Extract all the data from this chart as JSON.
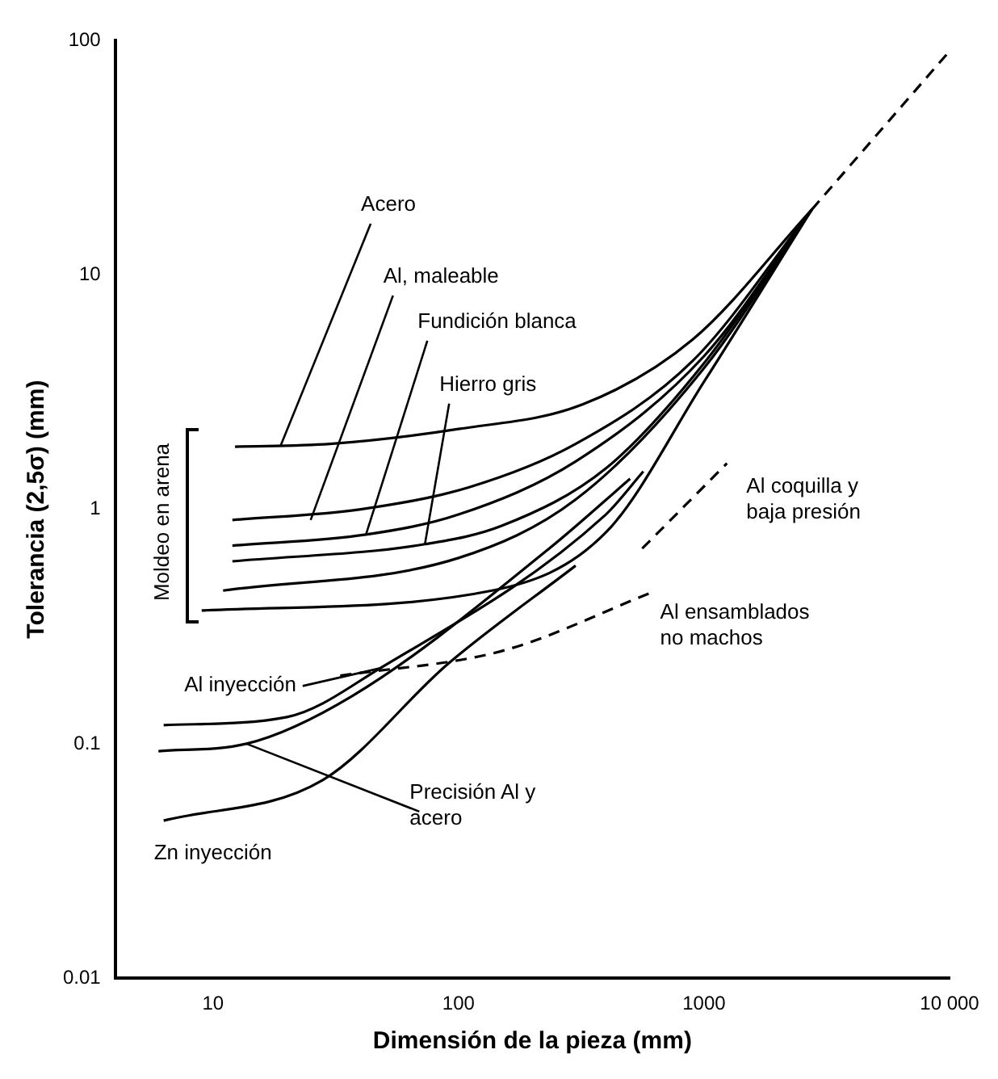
{
  "chart_data": {
    "type": "line",
    "xlabel": "Dimensión de la pieza (mm)",
    "ylabel": "Tolerancia (2,5σ) (mm)",
    "log": "xy",
    "grid": false,
    "legend": false,
    "marker": "none",
    "xlim": [
      4,
      10000
    ],
    "ylim": [
      0.01,
      100
    ],
    "xticks": [
      10,
      100,
      1000,
      {
        "value": 10000,
        "label": "10 000"
      }
    ],
    "yticks": [
      0.01,
      0.1,
      1,
      10,
      100
    ],
    "series": [
      {
        "color": "#000000",
        "line_style": "solid",
        "x": [
          12.3,
          30,
          100,
          320,
          900,
          2750
        ],
        "values": [
          1.85,
          1.9,
          2.2,
          2.8,
          5.3,
          19
        ]
      },
      {
        "color": "#000000",
        "line_style": "solid",
        "x": [
          12,
          40,
          110,
          300,
          900,
          2750
        ],
        "values": [
          0.9,
          1.0,
          1.24,
          1.9,
          4.3,
          19
        ]
      },
      {
        "color": "#000000",
        "line_style": "solid",
        "x": [
          12,
          42,
          100,
          300,
          1000,
          2750
        ],
        "values": [
          0.7,
          0.78,
          0.95,
          1.6,
          4.5,
          19
        ]
      },
      {
        "color": "#000000",
        "line_style": "solid",
        "x": [
          12,
          73,
          150,
          400,
          1000,
          2750
        ],
        "values": [
          0.6,
          0.71,
          0.85,
          1.5,
          4.2,
          19
        ]
      },
      {
        "color": "#000000",
        "line_style": "solid",
        "x": [
          11,
          100,
          300,
          1000,
          2750
        ],
        "values": [
          0.45,
          0.62,
          1.1,
          4,
          19
        ]
      },
      {
        "color": "#000000",
        "line_style": "solid",
        "x": [
          9,
          137,
          400,
          1000,
          2750
        ],
        "values": [
          0.37,
          0.45,
          0.8,
          3.5,
          19
        ]
      },
      {
        "color": "#000000",
        "line_style": "dashed",
        "x": [
          2750,
          10000
        ],
        "values": [
          19,
          90
        ]
      },
      {
        "color": "#000000",
        "line_style": "solid",
        "x": [
          6.3,
          20,
          48,
          394,
          566
        ],
        "values": [
          0.12,
          0.13,
          0.21,
          0.94,
          1.45
        ]
      },
      {
        "color": "#000000",
        "line_style": "solid",
        "x": [
          6,
          13.7,
          37,
          234,
          500
        ],
        "values": [
          0.093,
          0.1,
          0.16,
          0.68,
          1.35
        ]
      },
      {
        "color": "#000000",
        "line_style": "solid",
        "x": [
          6.3,
          28,
          91,
          300
        ],
        "values": [
          0.047,
          0.07,
          0.22,
          0.575
        ]
      },
      {
        "color": "#000000",
        "line_style": "dashed",
        "x": [
          560,
          1240
        ],
        "values": [
          0.68,
          1.57
        ]
      },
      {
        "color": "#000000",
        "line_style": "dashed",
        "x": [
          33,
          153,
          605
        ],
        "values": [
          0.195,
          0.25,
          0.44
        ]
      }
    ],
    "annotations": [
      {
        "text": "Acero",
        "x": 18.8,
        "y": 1.85
      },
      {
        "text": "Al, maleable",
        "x": 25,
        "y": 0.9
      },
      {
        "text": "Fundición blanca",
        "x": 42,
        "y": 0.78
      },
      {
        "text": "Hierro gris",
        "x": 73,
        "y": 0.71
      },
      {
        "text": "Al coquilla y baja presión",
        "x": 1240,
        "y": 1.57
      },
      {
        "text": "Al ensamblados no machos",
        "x": 605,
        "y": 0.44
      },
      {
        "text": "Al inyección",
        "x": 48,
        "y": 0.21
      },
      {
        "text": "Precisión Al y acero",
        "x": 13.7,
        "y": 0.1
      },
      {
        "text": "Zn inyección",
        "x": 6.3,
        "y": 0.047
      },
      "Moldeo en arena"
    ]
  }
}
